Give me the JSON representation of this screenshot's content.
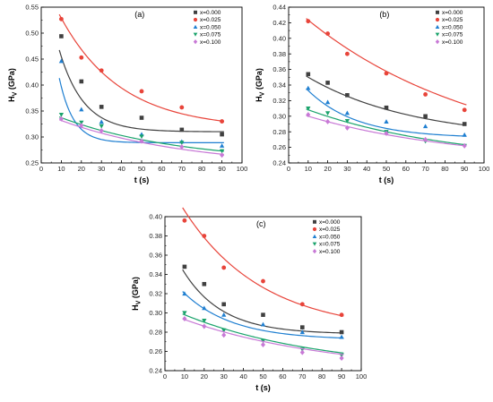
{
  "chart_data": [
    {
      "type": "scatter",
      "panel_label": "(a)",
      "xlabel": "t (s)",
      "ylabel": "H",
      "ylabel_sub": "V",
      "ylabel_unit": " (GPa)",
      "xlim": [
        0,
        100
      ],
      "ylim": [
        0.25,
        0.55
      ],
      "xticks": [
        "0",
        "10",
        "20",
        "30",
        "40",
        "50",
        "60",
        "70",
        "80",
        "90",
        "100"
      ],
      "yticks": [
        "0.25",
        "0.30",
        "0.35",
        "0.40",
        "0.45",
        "0.50",
        "0.55"
      ],
      "x": [
        10,
        20,
        30,
        50,
        70,
        90
      ],
      "legend_position": "top-right",
      "series": [
        {
          "name": "x=0.000",
          "color": "#404040",
          "marker": "square",
          "values": [
            0.494,
            0.407,
            0.358,
            0.337,
            0.314,
            0.305
          ],
          "fit": {
            "y0": 0.31,
            "A": 0.333,
            "tau": 12
          }
        },
        {
          "name": "x=0.025",
          "color": "#e8443a",
          "marker": "circle",
          "values": [
            0.527,
            0.453,
            0.428,
            0.388,
            0.357,
            0.33
          ],
          "fit": {
            "y0": 0.316,
            "A": 0.297,
            "tau": 30
          }
        },
        {
          "name": "x=0.050",
          "color": "#1f7fd1",
          "marker": "triangle-up",
          "values": [
            0.446,
            0.353,
            0.329,
            0.305,
            0.291,
            0.283
          ],
          "fit": {
            "y0": 0.289,
            "A": 0.45,
            "tau": 7
          }
        },
        {
          "name": "x=0.075",
          "color": "#1aa36b",
          "marker": "triangle-down",
          "values": [
            0.343,
            0.328,
            0.321,
            0.301,
            0.289,
            0.273
          ],
          "fit": {
            "y0": 0.25,
            "A": 0.103,
            "tau": 60
          }
        },
        {
          "name": "x=0.100",
          "color": "#c879d6",
          "marker": "diamond",
          "values": [
            0.335,
            0.322,
            0.312,
            0.292,
            0.281,
            0.265
          ],
          "fit": {
            "y0": 0.24,
            "A": 0.107,
            "tau": 65
          }
        }
      ]
    },
    {
      "type": "scatter",
      "panel_label": "(b)",
      "xlabel": "t (s)",
      "ylabel": "H",
      "ylabel_sub": "V",
      "ylabel_unit": " (GPa)",
      "xlim": [
        0,
        100
      ],
      "ylim": [
        0.24,
        0.44
      ],
      "xticks": [
        "0",
        "10",
        "20",
        "30",
        "40",
        "50",
        "60",
        "70",
        "80",
        "90",
        "100"
      ],
      "yticks": [
        "0.24",
        "0.26",
        "0.28",
        "0.30",
        "0.32",
        "0.34",
        "0.36",
        "0.38",
        "0.40",
        "0.42",
        "0.44"
      ],
      "x": [
        10,
        20,
        30,
        50,
        70,
        90
      ],
      "legend_position": "top-right",
      "series": [
        {
          "name": "x=0.000",
          "color": "#404040",
          "marker": "square",
          "values": [
            0.354,
            0.343,
            0.327,
            0.311,
            0.3,
            0.29
          ],
          "fit": {
            "y0": 0.27,
            "A": 0.096,
            "tau": 55
          }
        },
        {
          "name": "x=0.025",
          "color": "#e8443a",
          "marker": "circle",
          "values": [
            0.422,
            0.406,
            0.38,
            0.355,
            0.328,
            0.308
          ],
          "fit": {
            "y0": 0.24,
            "A": 0.205,
            "tau": 90
          }
        },
        {
          "name": "x=0.050",
          "color": "#1f7fd1",
          "marker": "triangle-up",
          "values": [
            0.336,
            0.318,
            0.304,
            0.293,
            0.287,
            0.276
          ],
          "fit": {
            "y0": 0.272,
            "A": 0.091,
            "tau": 25
          }
        },
        {
          "name": "x=0.075",
          "color": "#1aa36b",
          "marker": "triangle-down",
          "values": [
            0.31,
            0.304,
            0.294,
            0.28,
            0.268,
            0.262
          ],
          "fit": {
            "y0": 0.24,
            "A": 0.078,
            "tau": 75
          }
        },
        {
          "name": "x=0.100",
          "color": "#c879d6",
          "marker": "diamond",
          "values": [
            0.302,
            0.293,
            0.285,
            0.278,
            0.27,
            0.262
          ],
          "fit": {
            "y0": 0.24,
            "A": 0.068,
            "tau": 80
          }
        }
      ]
    },
    {
      "type": "scatter",
      "panel_label": "(c)",
      "xlabel": "t (s)",
      "ylabel": "H",
      "ylabel_sub": "V",
      "ylabel_unit": " (GPa)",
      "xlim": [
        0,
        100
      ],
      "ylim": [
        0.24,
        0.4
      ],
      "xticks": [
        "0",
        "10",
        "20",
        "30",
        "40",
        "50",
        "60",
        "70",
        "80",
        "90",
        "100"
      ],
      "yticks": [
        "0.24",
        "0.26",
        "0.28",
        "0.30",
        "0.32",
        "0.34",
        "0.36",
        "0.38",
        "0.40"
      ],
      "x": [
        10,
        20,
        30,
        50,
        70,
        90
      ],
      "legend_position": "top-right",
      "series": [
        {
          "name": "x=0.000",
          "color": "#404040",
          "marker": "square",
          "values": [
            0.348,
            0.33,
            0.309,
            0.298,
            0.285,
            0.28
          ],
          "fit": {
            "y0": 0.278,
            "A": 0.105,
            "tau": 20
          }
        },
        {
          "name": "x=0.025",
          "color": "#e8443a",
          "marker": "circle",
          "values": [
            0.396,
            0.38,
            0.347,
            0.333,
            0.309,
            0.298
          ],
          "fit": {
            "y0": 0.28,
            "A": 0.162,
            "tau": 40
          }
        },
        {
          "name": "x=0.050",
          "color": "#1f7fd1",
          "marker": "triangle-up",
          "values": [
            0.32,
            0.305,
            0.298,
            0.288,
            0.28,
            0.275
          ],
          "fit": {
            "y0": 0.272,
            "A": 0.072,
            "tau": 25
          }
        },
        {
          "name": "x=0.075",
          "color": "#1aa36b",
          "marker": "triangle-down",
          "values": [
            0.3,
            0.292,
            0.282,
            0.271,
            0.262,
            0.256
          ],
          "fit": {
            "y0": 0.24,
            "A": 0.067,
            "tau": 70
          }
        },
        {
          "name": "x=0.100",
          "color": "#c879d6",
          "marker": "diamond",
          "values": [
            0.294,
            0.286,
            0.277,
            0.267,
            0.259,
            0.253
          ],
          "fit": {
            "y0": 0.238,
            "A": 0.063,
            "tau": 75
          }
        }
      ]
    }
  ]
}
